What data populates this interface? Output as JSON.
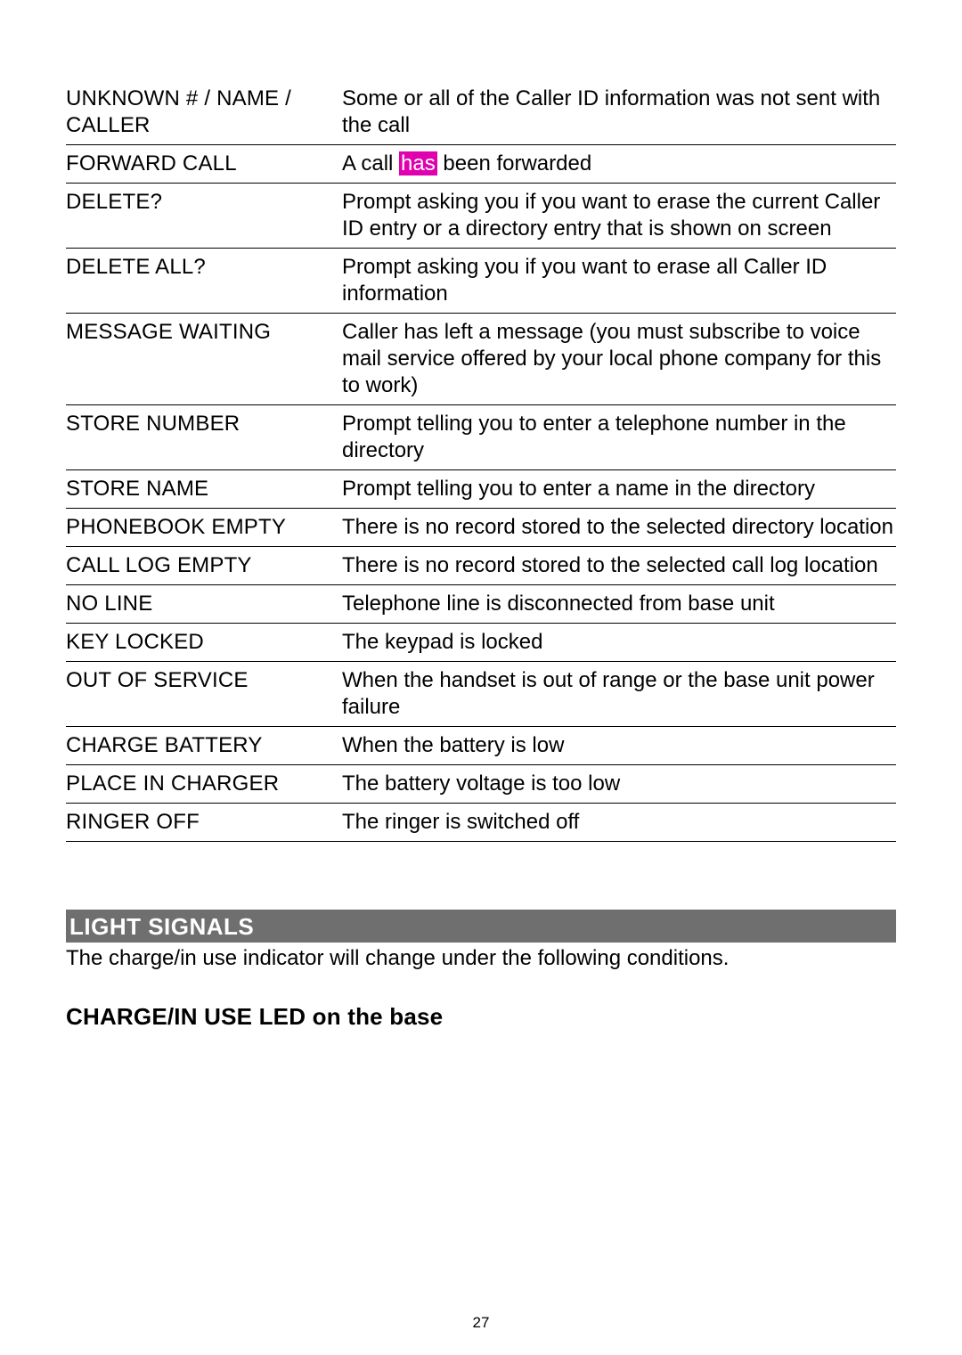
{
  "colors": {
    "text": "#000000",
    "background": "#ffffff",
    "sectionBar": "#6f6f6f",
    "sectionBarText": "#ffffff",
    "highlightBg": "#e000b0",
    "highlightText": "#ffffff",
    "rowBorder": "#000000"
  },
  "typography": {
    "bodyFontSizePt": 18,
    "sectionFontSizePt": 20,
    "pageNumFontSizePt": 13,
    "fontFamily": "Arial"
  },
  "table": {
    "rows": [
      {
        "term": "UNKNOWN # / NAME / CALLER",
        "desc": "Some or all of the Caller ID information was not sent with the call"
      },
      {
        "term": "FORWARD CALL",
        "desc_pre": "A call ",
        "desc_hl": "has",
        "desc_post": " been forwarded"
      },
      {
        "term": "DELETE?",
        "desc": "Prompt asking you if you want to erase the current Caller ID entry or a directory entry that is shown on screen"
      },
      {
        "term": "DELETE ALL?",
        "desc": "Prompt asking you if you want to erase all Caller ID information"
      },
      {
        "term": "MESSAGE WAITING",
        "desc": "Caller has left a message (you must subscribe to voice mail service offered by your local phone company for this to work)"
      },
      {
        "term": "STORE NUMBER",
        "desc": "Prompt telling you to enter a telephone number in the directory"
      },
      {
        "term": "STORE NAME",
        "desc": "Prompt telling you to enter a name in the directory"
      },
      {
        "term": "PHONEBOOK EMPTY",
        "desc": "There is no record stored to the selected directory location"
      },
      {
        "term": "CALL LOG EMPTY",
        "desc": "There is no record stored to the selected call log location"
      },
      {
        "term": "NO LINE",
        "desc": "Telephone line is disconnected from base unit"
      },
      {
        "term": "KEY LOCKED",
        "desc": "The keypad is locked"
      },
      {
        "term": "OUT OF SERVICE",
        "desc": "When the handset is out of range or the base unit power failure"
      },
      {
        "term": "CHARGE BATTERY",
        "desc": "When the battery is low"
      },
      {
        "term": "PLACE IN CHARGER",
        "desc": "The battery voltage is too low"
      },
      {
        "term": "RINGER OFF",
        "desc": "The ringer is switched off"
      }
    ]
  },
  "section": {
    "title": "LIGHT SIGNALS",
    "intro": "The charge/in use indicator will change under the following conditions.",
    "subhead": "CHARGE/IN USE LED on the base"
  },
  "pageNumber": "27"
}
